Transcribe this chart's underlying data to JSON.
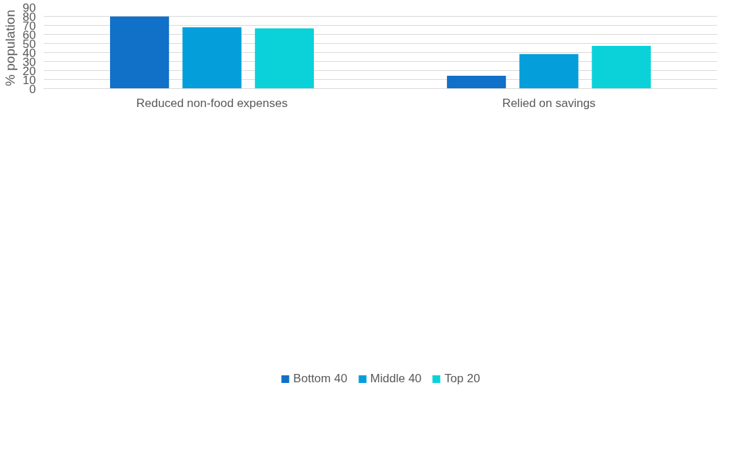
{
  "chart_data": {
    "type": "bar",
    "ylabel": "% population",
    "categories": [
      "Reduced non-food expenses",
      "Relied on savings"
    ],
    "series": [
      {
        "name": "Bottom 40",
        "color": "#1170c8",
        "values": [
          79.8,
          14.2
        ]
      },
      {
        "name": "Middle 40",
        "color": "#049fda",
        "values": [
          67.9,
          38.2
        ]
      },
      {
        "name": "Top 20",
        "color": "#0bd2d9",
        "values": [
          66.7,
          47.4
        ]
      }
    ],
    "ylim": [
      0,
      90
    ],
    "yticks": [
      0,
      10,
      20,
      30,
      40,
      50,
      60,
      70,
      80,
      90
    ],
    "grid": "y",
    "legend": "bottom"
  }
}
